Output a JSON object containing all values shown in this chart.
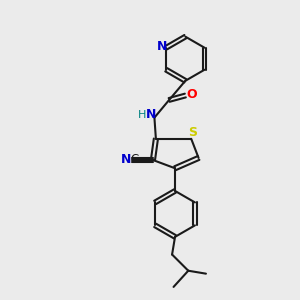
{
  "background_color": "#ebebeb",
  "bond_color": "#1a1a1a",
  "N_color": "#0000cc",
  "O_color": "#ff0000",
  "S_color": "#cccc00",
  "H_color": "#008080",
  "C_label_color": "#1a1a1a",
  "figsize": [
    3.0,
    3.0
  ],
  "dpi": 100,
  "xlim": [
    0,
    10
  ],
  "ylim": [
    0,
    10
  ]
}
